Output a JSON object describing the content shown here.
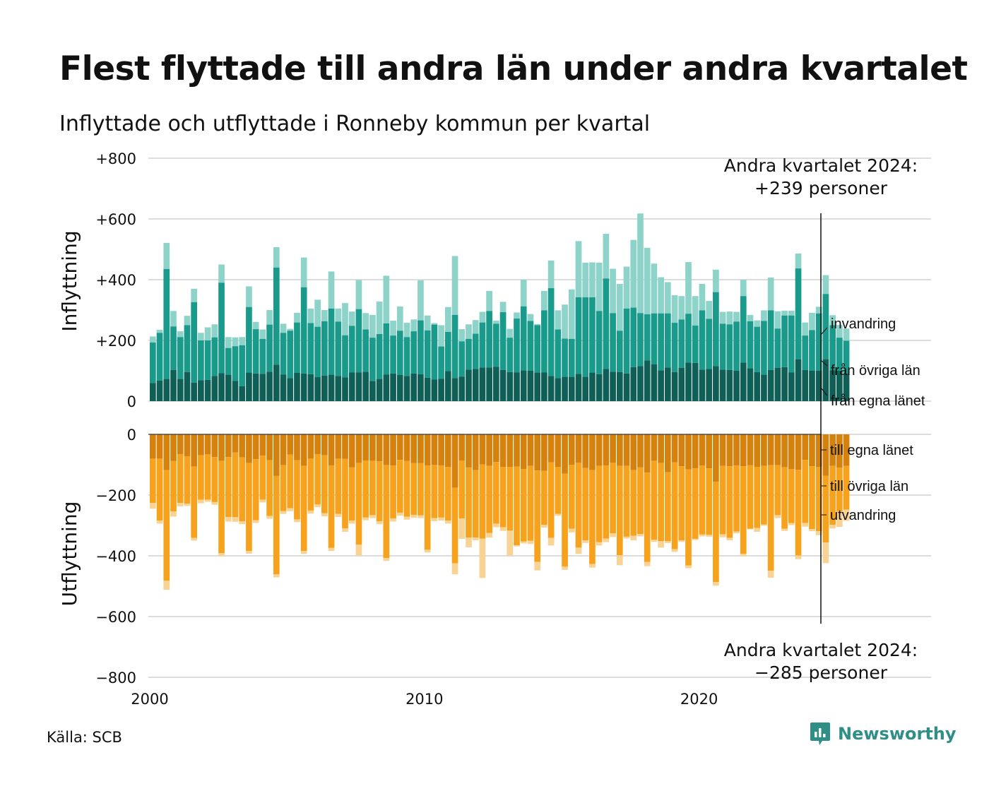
{
  "title": "Flest flyttade till andra län under andra kvartalet",
  "subtitle": "Inflyttade och utflyttade i Ronneby kommun per kvartal",
  "source": "Källa: SCB",
  "brand": {
    "name": "Newsworthy",
    "icon": "newsworthy-logo-icon",
    "color": "#2f8f86"
  },
  "chart_data": {
    "type": "bar",
    "stacked": true,
    "x_start": "2000 Q1",
    "x_ticks": [
      "2000",
      "2010",
      "2020"
    ],
    "y_ticks": [
      "+800",
      "+600",
      "+400",
      "+200",
      "0",
      "−200",
      "−400",
      "−600",
      "−800"
    ],
    "ylim": [
      -800,
      800
    ],
    "ylabel_top": "Inflyttning",
    "ylabel_bottom": "Utflyttning",
    "grid": true,
    "annotation_top": [
      "Andra kvartalet 2024:",
      "+239 personer"
    ],
    "annotation_bottom": [
      "Andra kvartalet 2024:",
      "−285 personer"
    ],
    "colors": {
      "egna_in": "#0f5f56",
      "ovriga_in": "#1a9a8a",
      "invandring": "#8dd3c9",
      "egna_out": "#d4810e",
      "ovriga_out": "#f7a21c",
      "utvandring": "#f9d393"
    },
    "series_labels": {
      "egna_in": "från egna länet",
      "ovriga_in": "från övriga län",
      "invandring": "invandring",
      "egna_out": "till egna länet",
      "ovriga_out": "till övriga län",
      "utvandring": "utvandring"
    },
    "in_totals": [
      213,
      235,
      521,
      297,
      230,
      281,
      370,
      225,
      243,
      253,
      450,
      211,
      210,
      211,
      378,
      261,
      236,
      300,
      507,
      255,
      238,
      291,
      473,
      305,
      334,
      300,
      427,
      305,
      323,
      295,
      399,
      290,
      284,
      328,
      413,
      265,
      312,
      258,
      269,
      398,
      282,
      257,
      250,
      310,
      478,
      237,
      253,
      267,
      294,
      363,
      265,
      327,
      238,
      292,
      400,
      287,
      254,
      363,
      463,
      299,
      318,
      368,
      527,
      456,
      457,
      456,
      551,
      436,
      386,
      443,
      531,
      618,
      505,
      453,
      408,
      392,
      349,
      346,
      458,
      346,
      386,
      330,
      433,
      294,
      295,
      294,
      400,
      284,
      266,
      299,
      407,
      296,
      298,
      298,
      486,
      259,
      291,
      311,
      415,
      283,
      251,
      239
    ],
    "in_ovriga": [
      193,
      225,
      435,
      246,
      211,
      250,
      326,
      200,
      200,
      210,
      390,
      175,
      181,
      184,
      310,
      237,
      205,
      252,
      440,
      225,
      232,
      259,
      375,
      257,
      245,
      263,
      305,
      262,
      217,
      248,
      303,
      236,
      209,
      221,
      256,
      216,
      232,
      211,
      230,
      266,
      233,
      252,
      180,
      228,
      284,
      197,
      205,
      222,
      259,
      297,
      255,
      293,
      209,
      272,
      312,
      264,
      250,
      299,
      372,
      236,
      206,
      205,
      342,
      342,
      342,
      297,
      404,
      290,
      232,
      305,
      308,
      290,
      286,
      289,
      289,
      289,
      258,
      269,
      288,
      249,
      299,
      271,
      359,
      255,
      253,
      262,
      346,
      263,
      245,
      264,
      299,
      239,
      282,
      282,
      437,
      216,
      234,
      289,
      353,
      250,
      209,
      199
    ],
    "in_egna": [
      60,
      68,
      73,
      103,
      73,
      96,
      61,
      69,
      70,
      83,
      92,
      87,
      67,
      49,
      94,
      91,
      90,
      97,
      120,
      88,
      76,
      93,
      91,
      89,
      79,
      84,
      87,
      83,
      78,
      95,
      95,
      97,
      66,
      73,
      88,
      91,
      86,
      83,
      91,
      89,
      77,
      71,
      74,
      99,
      76,
      81,
      104,
      106,
      111,
      111,
      113,
      103,
      96,
      95,
      101,
      100,
      94,
      95,
      83,
      76,
      80,
      80,
      90,
      80,
      94,
      89,
      106,
      97,
      96,
      91,
      112,
      115,
      134,
      121,
      101,
      111,
      96,
      110,
      127,
      126,
      104,
      106,
      115,
      104,
      103,
      100,
      127,
      108,
      96,
      87,
      103,
      110,
      112,
      95,
      138,
      103,
      100,
      100,
      138,
      102,
      100,
      91
    ],
    "out_totals": [
      -245,
      -294,
      -512,
      -271,
      -237,
      -236,
      -350,
      -227,
      -222,
      -232,
      -401,
      -287,
      -288,
      -296,
      -393,
      -292,
      -224,
      -278,
      -471,
      -262,
      -253,
      -289,
      -394,
      -261,
      -240,
      -270,
      -384,
      -272,
      -321,
      -294,
      -399,
      -283,
      -276,
      -296,
      -417,
      -287,
      -268,
      -281,
      -275,
      -276,
      -389,
      -286,
      -284,
      -294,
      -461,
      -344,
      -372,
      -349,
      -473,
      -340,
      -306,
      -318,
      -399,
      -369,
      -359,
      -361,
      -448,
      -307,
      -366,
      -268,
      -446,
      -323,
      -394,
      -358,
      -439,
      -366,
      -355,
      -338,
      -431,
      -343,
      -349,
      -336,
      -434,
      -354,
      -373,
      -358,
      -387,
      -354,
      -441,
      -348,
      -336,
      -337,
      -498,
      -339,
      -349,
      -326,
      -402,
      -313,
      -321,
      -301,
      -472,
      -276,
      -318,
      -299,
      -411,
      -304,
      -319,
      -332,
      -424,
      -310,
      -305,
      -285
    ],
    "out_ovriga": [
      -226,
      -284,
      -482,
      -254,
      -226,
      -228,
      -341,
      -215,
      -215,
      -223,
      -391,
      -272,
      -273,
      -286,
      -384,
      -283,
      -215,
      -269,
      -461,
      -253,
      -243,
      -280,
      -384,
      -251,
      -231,
      -260,
      -374,
      -262,
      -310,
      -284,
      -363,
      -274,
      -266,
      -286,
      -407,
      -277,
      -258,
      -271,
      -265,
      -267,
      -380,
      -276,
      -274,
      -284,
      -425,
      -277,
      -340,
      -340,
      -343,
      -325,
      -294,
      -306,
      -317,
      -365,
      -353,
      -350,
      -420,
      -298,
      -341,
      -262,
      -435,
      -311,
      -373,
      -349,
      -427,
      -355,
      -343,
      -326,
      -398,
      -337,
      -334,
      -328,
      -420,
      -347,
      -352,
      -352,
      -378,
      -349,
      -432,
      -344,
      -330,
      -331,
      -486,
      -329,
      -341,
      -320,
      -393,
      -311,
      -308,
      -297,
      -449,
      -266,
      -311,
      -292,
      -399,
      -292,
      -312,
      -319,
      -356,
      -298,
      -255,
      -248
    ],
    "out_egna": [
      -80,
      -80,
      -118,
      -88,
      -65,
      -72,
      -106,
      -69,
      -66,
      -75,
      -87,
      -75,
      -60,
      -76,
      -94,
      -82,
      -70,
      -85,
      -137,
      -101,
      -67,
      -85,
      -104,
      -80,
      -65,
      -69,
      -103,
      -80,
      -81,
      -109,
      -94,
      -86,
      -87,
      -89,
      -101,
      -103,
      -84,
      -88,
      -95,
      -95,
      -103,
      -100,
      -103,
      -107,
      -176,
      -86,
      -109,
      -118,
      -99,
      -104,
      -91,
      -107,
      -107,
      -106,
      -114,
      -104,
      -119,
      -120,
      -92,
      -107,
      -129,
      -100,
      -93,
      -111,
      -118,
      -104,
      -103,
      -93,
      -104,
      -104,
      -118,
      -109,
      -126,
      -87,
      -94,
      -125,
      -92,
      -105,
      -115,
      -112,
      -103,
      -112,
      -156,
      -104,
      -105,
      -103,
      -105,
      -102,
      -107,
      -104,
      -101,
      -101,
      -108,
      -114,
      -117,
      -84,
      -105,
      -107,
      -136,
      -104,
      -110,
      -104
    ]
  }
}
